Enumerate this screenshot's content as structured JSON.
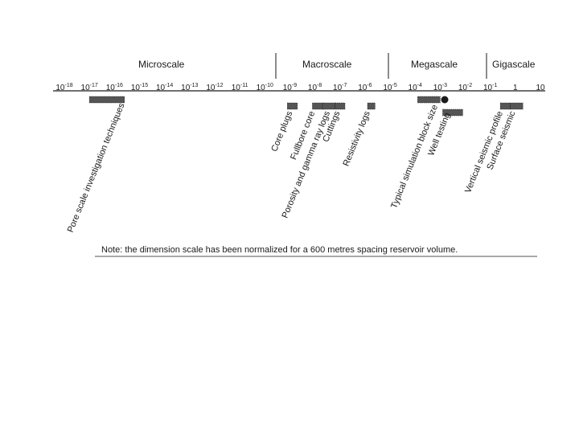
{
  "scales": [
    {
      "key": "micro",
      "label": "Microscale"
    },
    {
      "key": "macro",
      "label": "Macroscale"
    },
    {
      "key": "mega",
      "label": "Megascale"
    },
    {
      "key": "giga",
      "label": "Gigascale"
    }
  ],
  "axis": {
    "ticks": [
      {
        "base": "10",
        "exp": "-18"
      },
      {
        "base": "10",
        "exp": "-17"
      },
      {
        "base": "10",
        "exp": "-16"
      },
      {
        "base": "10",
        "exp": "-15"
      },
      {
        "base": "10",
        "exp": "-14"
      },
      {
        "base": "10",
        "exp": "-13"
      },
      {
        "base": "10",
        "exp": "-12"
      },
      {
        "base": "10",
        "exp": "-11"
      },
      {
        "base": "10",
        "exp": "-10"
      },
      {
        "base": "10",
        "exp": "-9"
      },
      {
        "base": "10",
        "exp": "-8"
      },
      {
        "base": "10",
        "exp": "-7"
      },
      {
        "base": "10",
        "exp": "-6"
      },
      {
        "base": "10",
        "exp": "-5"
      },
      {
        "base": "10",
        "exp": "-4"
      },
      {
        "base": "10",
        "exp": "-3"
      },
      {
        "base": "10",
        "exp": "-2"
      },
      {
        "base": "10",
        "exp": "-1"
      },
      {
        "base": "1",
        "exp": ""
      },
      {
        "base": "10",
        "exp": ""
      }
    ]
  },
  "techniques": [
    {
      "key": "pore",
      "label": "Pore scale investigation techniques",
      "from": -17,
      "to": -15.6
    },
    {
      "key": "core-plugs",
      "label": "Core plugs",
      "from": -9.1,
      "to": -8.7
    },
    {
      "key": "fullbore",
      "label": "Fullbore core",
      "from": -8.1,
      "to": -7.6
    },
    {
      "key": "porosity",
      "label": "Porosity and gamma ray logs",
      "from": -7.7,
      "to": -7.2
    },
    {
      "key": "cuttings",
      "label": "Cuttings",
      "from": -7.2,
      "to": -6.8
    },
    {
      "key": "resistivity",
      "label": "Resistivity logs",
      "from": -5.9,
      "to": -5.6
    },
    {
      "key": "simulation",
      "label": "Typical simulation block size",
      "from": -3.9,
      "to": -3.0
    },
    {
      "key": "well-testing",
      "label": "Well testing",
      "from": -2.9,
      "to": -2.1
    },
    {
      "key": "vsp",
      "label": "Vertical seismic profile",
      "from": -0.6,
      "to": -0.2
    },
    {
      "key": "surface-seismic",
      "label": "Surface seismic",
      "from": -0.2,
      "to": 0.3
    }
  ],
  "note": "Note: the dimension scale has been normalized for a 600 metres spacing reservoir volume.",
  "colors": {
    "ink": "#1a1a1a",
    "bar": "#555555"
  }
}
